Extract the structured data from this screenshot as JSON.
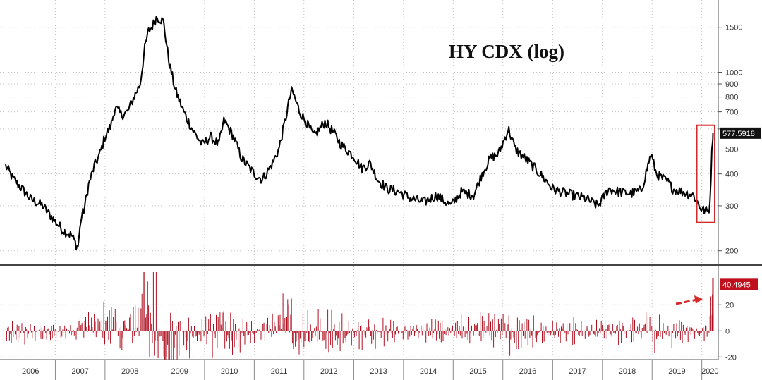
{
  "chart_data": [
    {
      "type": "line",
      "title": "HY CDX (log)",
      "yscale": "log",
      "ylim": [
        185,
        1800
      ],
      "yticks": [
        200,
        300,
        400,
        500,
        600,
        700,
        800,
        900,
        1000,
        1500
      ],
      "ytick_labels": [
        "200",
        "300",
        "400",
        "500",
        "",
        "700",
        "800",
        "900",
        "1000",
        "1500"
      ],
      "last_value_label": "577.5918",
      "grid": true,
      "series": [
        {
          "color": "#000000",
          "x": [
            "2006-01-01",
            "2006-03-01",
            "2006-05-01",
            "2006-07-01",
            "2006-10-01",
            "2007-01-01",
            "2007-03-01",
            "2007-05-01",
            "2007-06-15",
            "2007-07-10",
            "2007-08-01",
            "2007-09-01",
            "2007-10-15",
            "2007-11-25",
            "2008-01-01",
            "2008-02-15",
            "2008-03-15",
            "2008-05-01",
            "2008-06-15",
            "2008-08-01",
            "2008-09-15",
            "2008-10-20",
            "2008-11-15",
            "2008-12-10",
            "2009-01-15",
            "2009-03-05",
            "2009-04-15",
            "2009-06-01",
            "2009-08-01",
            "2009-10-01",
            "2009-12-15",
            "2010-02-15",
            "2010-04-15",
            "2010-05-25",
            "2010-08-01",
            "2010-10-01",
            "2011-01-01",
            "2011-03-01",
            "2011-05-15",
            "2011-07-01",
            "2011-08-15",
            "2011-09-20",
            "2011-10-05",
            "2011-12-01",
            "2012-01-15",
            "2012-03-15",
            "2012-05-15",
            "2012-06-05",
            "2012-08-15",
            "2012-10-01",
            "2013-01-01",
            "2013-03-01",
            "2013-05-01",
            "2013-06-25",
            "2013-09-01",
            "2013-12-01",
            "2014-03-01",
            "2014-06-01",
            "2014-09-01",
            "2014-12-15",
            "2015-03-01",
            "2015-06-01",
            "2015-08-01",
            "2015-09-30",
            "2015-12-01",
            "2016-01-20",
            "2016-02-11",
            "2016-04-01",
            "2016-07-01",
            "2016-10-01",
            "2017-01-01",
            "2017-03-01",
            "2017-06-01",
            "2017-09-01",
            "2017-12-01",
            "2018-02-15",
            "2018-05-01",
            "2018-08-01",
            "2018-10-15",
            "2018-12-24",
            "2019-02-01",
            "2019-05-01",
            "2019-06-01",
            "2019-08-15",
            "2019-11-01",
            "2020-01-01",
            "2020-02-20",
            "2020-03-01",
            "2020-03-10",
            "2020-03-18",
            "2020-03-23"
          ],
          "y": [
            430,
            380,
            350,
            320,
            300,
            260,
            240,
            230,
            205,
            270,
            290,
            360,
            430,
            480,
            560,
            620,
            730,
            680,
            700,
            800,
            900,
            1250,
            1450,
            1500,
            1650,
            1580,
            1100,
            850,
            700,
            600,
            520,
            560,
            520,
            650,
            560,
            460,
            400,
            380,
            440,
            500,
            640,
            800,
            850,
            700,
            640,
            560,
            620,
            640,
            570,
            520,
            470,
            420,
            440,
            380,
            350,
            340,
            320,
            310,
            330,
            300,
            340,
            330,
            400,
            460,
            480,
            560,
            600,
            500,
            450,
            400,
            350,
            340,
            330,
            320,
            300,
            350,
            340,
            335,
            345,
            480,
            400,
            370,
            350,
            340,
            330,
            290,
            285,
            310,
            420,
            520,
            577.59
          ]
        }
      ]
    },
    {
      "type": "bar",
      "ylim": [
        -22,
        45
      ],
      "yticks": [
        -20,
        0,
        20
      ],
      "ytick_labels": [
        "-20",
        "0",
        "20"
      ],
      "last_value_label": "40.4945",
      "color": "#b01020",
      "grid": true,
      "x_labels": [
        "2006",
        "2007",
        "2008",
        "2009",
        "2010",
        "2011",
        "2012",
        "2013",
        "2014",
        "2015",
        "2016",
        "2017",
        "2018",
        "2019",
        "2020"
      ],
      "x_ticks": [
        "2006-01-01",
        "2007-01-01",
        "2008-01-01",
        "2009-01-01",
        "2010-01-01",
        "2011-01-01",
        "2012-01-01",
        "2013-01-01",
        "2014-01-01",
        "2015-01-01",
        "2016-01-01",
        "2017-01-01",
        "2018-01-01",
        "2019-01-01",
        "2020-01-01"
      ],
      "x_end": "2020-05-01",
      "last_spike_values": [
        12,
        28,
        40.4945
      ]
    }
  ]
}
